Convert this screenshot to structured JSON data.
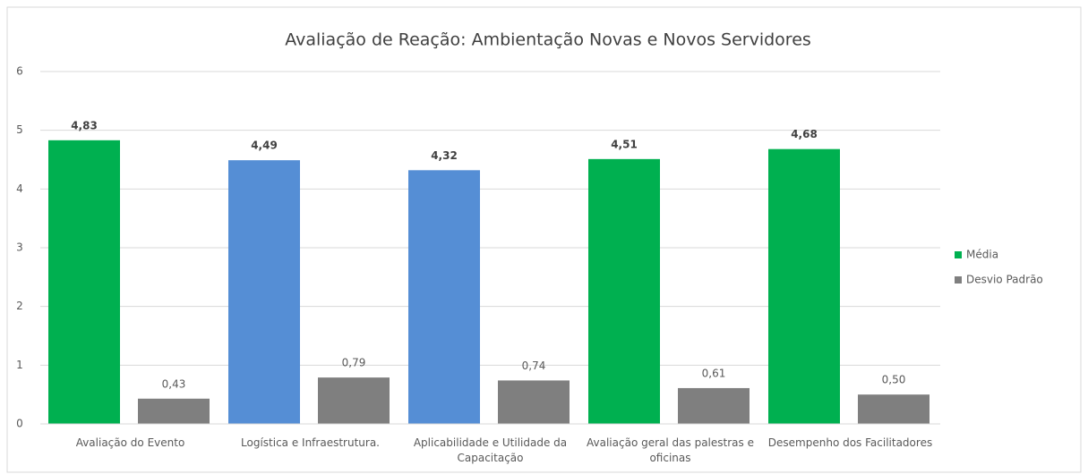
{
  "chart_data": {
    "type": "bar",
    "title": "Avaliação de Reação: Ambientação Novas e Novos Servidores",
    "categories": [
      "Avaliação do Evento",
      "Logística e Infraestrutura.",
      "Aplicabilidade e Utilidade da Capacitação",
      "Avaliação geral das palestras e oficinas",
      "Desempenho dos Facilitadores"
    ],
    "series": [
      {
        "name": "Média",
        "color": "#00b050",
        "colors": [
          "#00b050",
          "#558ed5",
          "#558ed5",
          "#00b050",
          "#00b050"
        ],
        "values": [
          4.83,
          4.49,
          4.32,
          4.51,
          4.68
        ],
        "value_labels": [
          "4,83",
          "4,49",
          "4,32",
          "4,51",
          "4,68"
        ]
      },
      {
        "name": "Desvio Padrão",
        "color": "#7f7f7f",
        "values": [
          0.43,
          0.79,
          0.74,
          0.61,
          0.5
        ],
        "value_labels": [
          "0,43",
          "0,79",
          "0,74",
          "0,61",
          "0,50"
        ]
      }
    ],
    "ylim": [
      0,
      6
    ],
    "yticks": [
      0,
      1,
      2,
      3,
      4,
      5,
      6
    ],
    "grid": true,
    "legend": "right"
  }
}
